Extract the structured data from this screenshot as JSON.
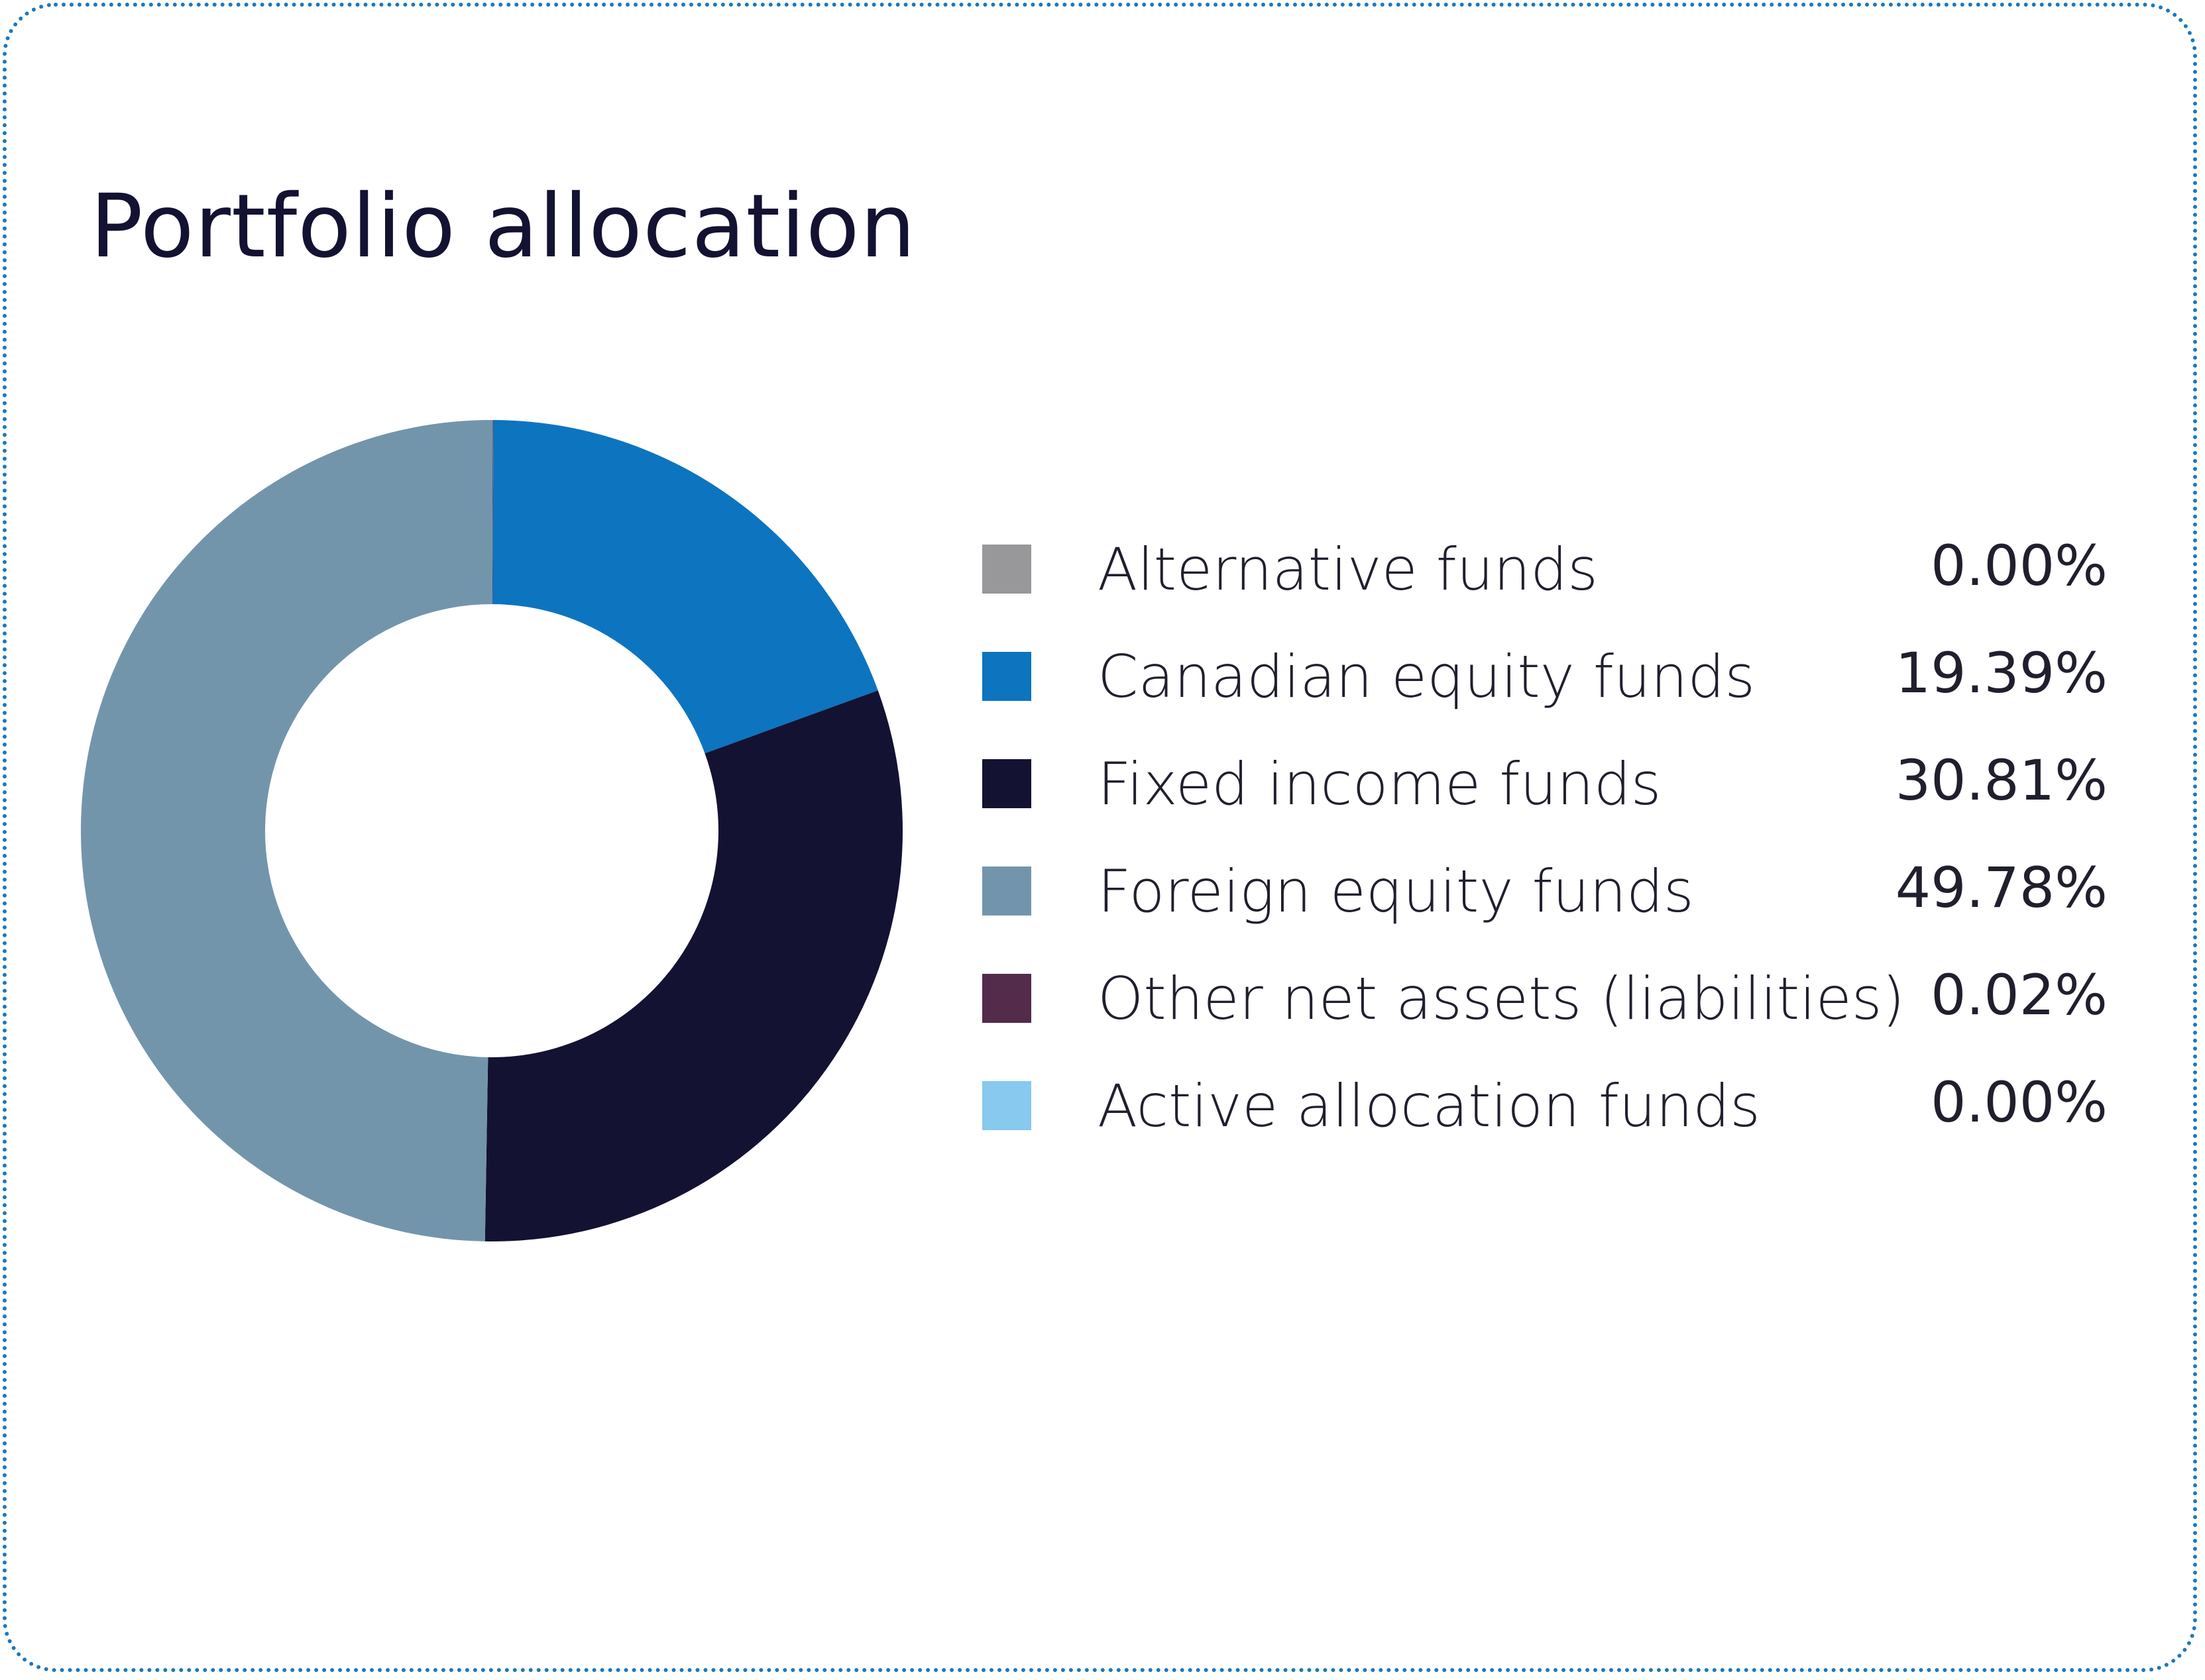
{
  "title": "Portfolio allocation",
  "chart_data": {
    "type": "pie",
    "title": "Portfolio allocation",
    "donut": true,
    "legend_position": "right",
    "slices": [
      {
        "label": "Alternative funds",
        "value": 0.0,
        "display": "0.00%",
        "color": "#98989a"
      },
      {
        "label": "Canadian equity funds",
        "value": 19.39,
        "display": "19.39%",
        "color": "#0d74bf"
      },
      {
        "label": "Fixed income funds",
        "value": 30.81,
        "display": "30.81%",
        "color": "#131232"
      },
      {
        "label": "Foreign equity funds",
        "value": 49.78,
        "display": "49.78%",
        "color": "#7395ab"
      },
      {
        "label": "Other net assets (liabilities)",
        "value": 0.02,
        "display": "0.02%",
        "color": "#532b4b"
      },
      {
        "label": "Active allocation funds",
        "value": 0.0,
        "display": "0.00%",
        "color": "#88c9ef"
      }
    ],
    "pie_order": [
      4,
      1,
      2,
      3
    ]
  }
}
